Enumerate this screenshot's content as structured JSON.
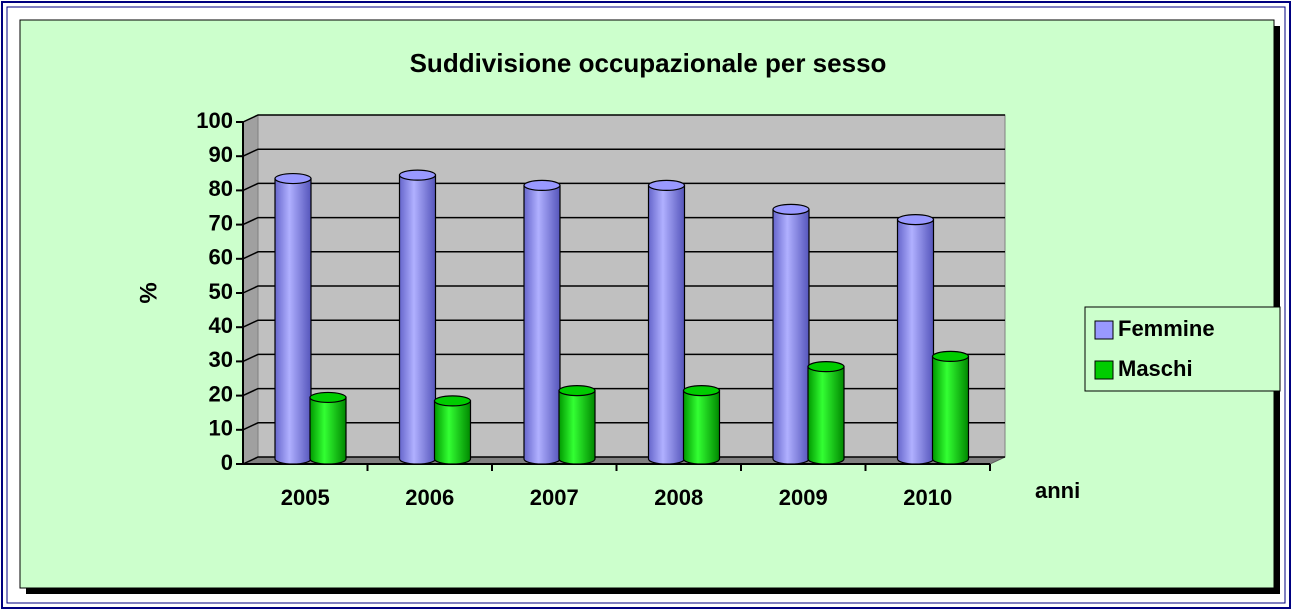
{
  "chart_data": {
    "type": "bar3d",
    "title": "Suddivisione occupazionale per sesso",
    "y_label": "%",
    "x_label": "anni",
    "categories": [
      "2005",
      "2006",
      "2007",
      "2008",
      "2009",
      "2010"
    ],
    "series": [
      {
        "name": "Femmine",
        "color": "#9999ff",
        "values": [
          82,
          83,
          80,
          80,
          73,
          70
        ]
      },
      {
        "name": "Maschi",
        "color": "#00cc00",
        "values": [
          18,
          17,
          20,
          20,
          27,
          30
        ]
      }
    ],
    "ylim": [
      0,
      100
    ],
    "yticks": [
      0,
      10,
      20,
      30,
      40,
      50,
      60,
      70,
      80,
      90,
      100
    ],
    "grid": true,
    "legend": "right"
  }
}
